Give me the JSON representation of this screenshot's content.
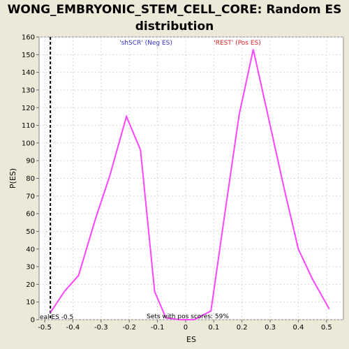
{
  "chart_data": {
    "type": "line",
    "title_lines": [
      "WONG_EMBRYONIC_STEM_CELL_CORE: Random ES",
      "distribution"
    ],
    "xlabel": "ES",
    "ylabel": "P(ES)",
    "xlim": [
      -0.52,
      0.56
    ],
    "ylim": [
      0,
      160
    ],
    "xticks": [
      -0.5,
      -0.4,
      -0.3,
      -0.2,
      -0.1,
      0.0,
      0.1,
      0.2,
      0.3,
      0.4,
      0.5
    ],
    "xtick_labels": [
      "-0.5",
      "-0.4",
      "-0.3",
      "-0.2",
      "-0.1",
      "0",
      "0.1",
      "0.2",
      "0.3",
      "0.4",
      "0.5"
    ],
    "yticks": [
      0,
      10,
      20,
      30,
      40,
      50,
      60,
      70,
      80,
      90,
      100,
      110,
      120,
      130,
      140,
      150,
      160
    ],
    "grid": true,
    "series": [
      {
        "color": "#ff44ff",
        "x": [
          -0.48,
          -0.43,
          -0.38,
          -0.32,
          -0.27,
          -0.21,
          -0.16,
          -0.11,
          -0.07,
          -0.02,
          0.03,
          0.09,
          0.14,
          0.19,
          0.24,
          0.3,
          0.35,
          0.4,
          0.45,
          0.51
        ],
        "y": [
          4,
          16,
          25,
          57,
          81,
          115,
          96,
          16,
          1,
          0,
          0,
          5,
          61,
          116,
          153,
          110,
          74,
          40,
          23,
          6
        ]
      }
    ],
    "vline": {
      "x": -0.48,
      "style": "dashed",
      "color": "#000000"
    },
    "annotations": {
      "neg": {
        "text": "'shSCR' (Neg ES)",
        "color": "#3333cc"
      },
      "pos": {
        "text": "'REST' (Pos ES)",
        "color": "#dd2222"
      },
      "actual": {
        "text": "eal ES -0.5",
        "color": "#000000"
      },
      "sets": {
        "text": "Sets with pos scores: 59%",
        "color": "#000000"
      }
    }
  }
}
